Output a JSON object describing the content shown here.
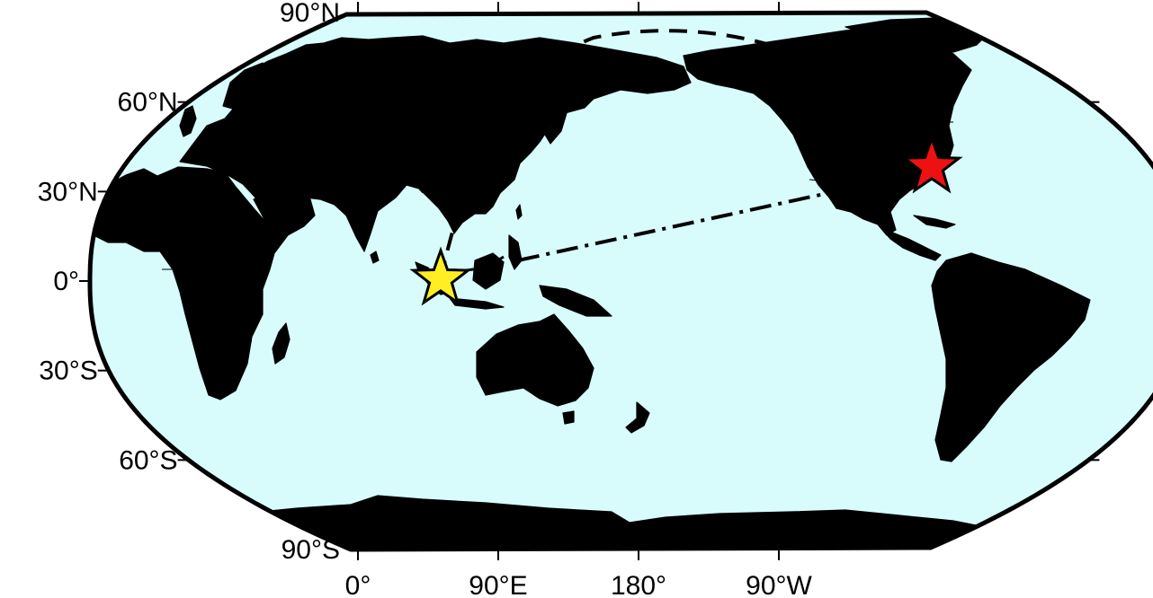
{
  "map": {
    "projection": "robinson",
    "center_longitude": 150,
    "colors": {
      "ocean": "#d8fbfb",
      "land": "#6ee86e",
      "border": "#000000",
      "frame": "#000000",
      "star_origin": "#ffee22",
      "star_destination": "#ee1111"
    },
    "lat_labels": [
      {
        "lat": 90,
        "label": "90°N"
      },
      {
        "lat": 60,
        "label": "60°N"
      },
      {
        "lat": 30,
        "label": "30°N"
      },
      {
        "lat": 0,
        "label": "0°"
      },
      {
        "lat": -30,
        "label": "30°S"
      },
      {
        "lat": -60,
        "label": "60°S"
      },
      {
        "lat": -90,
        "label": "90°S"
      }
    ],
    "lon_labels": [
      {
        "lon": 0,
        "label": "0°"
      },
      {
        "lon": 90,
        "label": "90°E"
      },
      {
        "lon": 180,
        "label": "180°"
      },
      {
        "lon": -90,
        "label": "90°W"
      }
    ],
    "markers": [
      {
        "name": "origin",
        "lon": 105,
        "lat": 1,
        "symbol": "star-icon",
        "color": "#ffee22"
      },
      {
        "name": "destination",
        "lon": -73,
        "lat": 34,
        "symbol": "star-icon",
        "color": "#ee1111"
      }
    ],
    "routes": [
      {
        "name": "great-circle",
        "style": "dashed",
        "from": [
          105,
          1
        ],
        "to": [
          -73,
          34
        ]
      },
      {
        "name": "rhumb-line",
        "style": "dash-dot",
        "from": [
          115,
          5
        ],
        "to": [
          -73,
          30
        ]
      }
    ]
  }
}
